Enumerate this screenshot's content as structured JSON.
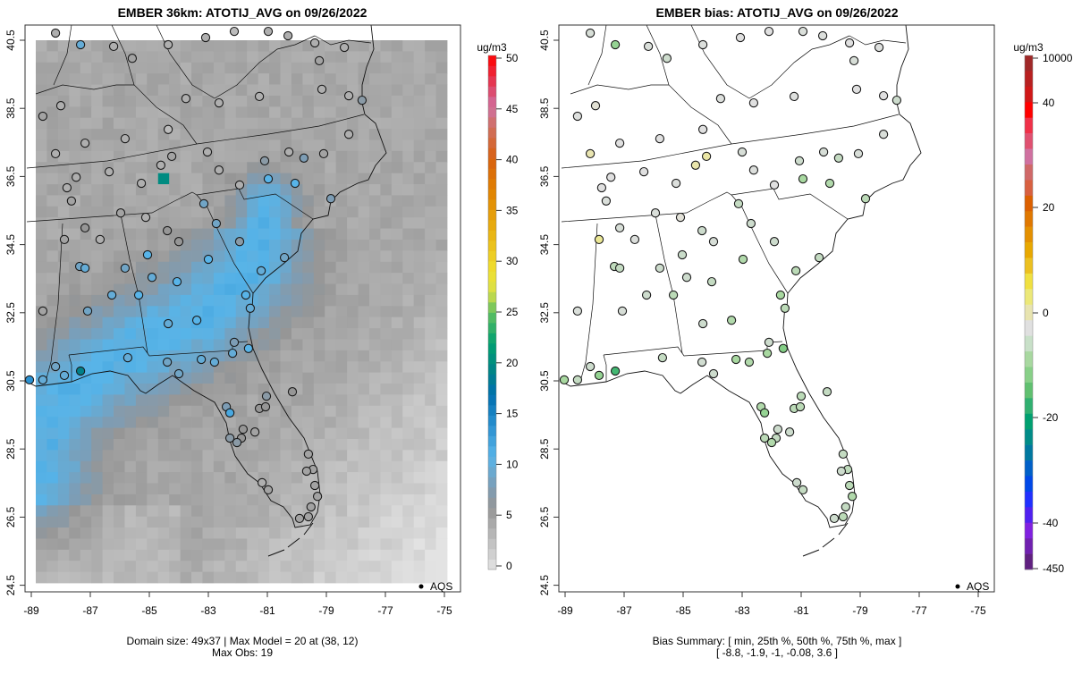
{
  "chart_data": [
    {
      "type": "heatmap",
      "title": "EMBER 36km: ATOTIJ_AVG on 09/26/2022",
      "xticks": [
        "-89",
        "-87",
        "-85",
        "-83",
        "-81",
        "-79",
        "-77",
        "-75"
      ],
      "yticks": [
        "40.5",
        "38.5",
        "36.5",
        "34.5",
        "32.5",
        "30.5",
        "28.5",
        "26.5",
        "24.5"
      ],
      "xlim": [
        -89.2,
        -74.6
      ],
      "ylim": [
        24.3,
        40.95
      ],
      "colorbar": {
        "unit": "ug/m3",
        "range": [
          0,
          50
        ],
        "ticks": [
          "0",
          "5",
          "10",
          "15",
          "20",
          "25",
          "30",
          "35",
          "40",
          "45",
          "50"
        ]
      },
      "legend": {
        "label": "AQS",
        "position": "bottom-right"
      },
      "footer_line1": "Domain size: 49x37 | Max Model = 20 at (38, 12)",
      "footer_line2": "Max Obs: 19"
    },
    {
      "type": "scatter",
      "title": "EMBER bias: ATOTIJ_AVG on 09/26/2022",
      "xticks": [
        "-89",
        "-87",
        "-85",
        "-83",
        "-81",
        "-79",
        "-77",
        "-75"
      ],
      "yticks": [
        "40.5",
        "38.5",
        "36.5",
        "34.5",
        "32.5",
        "30.5",
        "28.5",
        "26.5",
        "24.5"
      ],
      "colorbar": {
        "unit": "ug/m3",
        "ticks": [
          "10000",
          "40",
          "20",
          "0",
          "-20",
          "-40",
          "-450"
        ],
        "colors": [
          "#a02828",
          "#b82020",
          "#d01818",
          "#ff0000",
          "#f03048",
          "#e05070",
          "#d070a0",
          "#d06868",
          "#d86040",
          "#dc6000",
          "#e07800",
          "#e49000",
          "#e8a800",
          "#ecc020",
          "#f0e040",
          "#ece878",
          "#e8e4b0",
          "#e0e0e0",
          "#c8e0c8",
          "#a8d8a0",
          "#88d088",
          "#60c070",
          "#30b070",
          "#00a070",
          "#008c88",
          "#0078a0",
          "#0060c8",
          "#0048e8",
          "#2030ff",
          "#5020f0",
          "#8020e0",
          "#7020b0",
          "#602080"
        ]
      },
      "legend": {
        "label": "AQS",
        "position": "bottom-right"
      },
      "footer_line1": "Bias Summary: [ min, 25th %, 50th %, 75th %, max ]",
      "footer_line2": "[ -8.8,   -1.9,   -1,   -0.08,   3.6 ]"
    }
  ],
  "colors": {
    "left_scale": [
      [
        0,
        "#e3e3e3"
      ],
      [
        3,
        "#bcbcbc"
      ],
      [
        6,
        "#969696"
      ],
      [
        8,
        "#7d9db5"
      ],
      [
        11,
        "#58b4e8"
      ],
      [
        14,
        "#2a90d0"
      ],
      [
        17,
        "#0070b0"
      ],
      [
        19,
        "#00808a"
      ],
      [
        22,
        "#00a070"
      ],
      [
        25,
        "#60c060"
      ],
      [
        27,
        "#d8e048"
      ],
      [
        29,
        "#f0e030"
      ],
      [
        33,
        "#e8b010"
      ],
      [
        37,
        "#e08000"
      ],
      [
        40,
        "#d86010"
      ],
      [
        43,
        "#d07060"
      ],
      [
        45,
        "#d070a0"
      ],
      [
        47,
        "#e04060"
      ],
      [
        50,
        "#ff0000"
      ]
    ]
  },
  "sites_header": [
    "lon",
    "lat",
    "obs",
    "bias"
  ],
  "sites": [
    [
      -88.18,
      40.71,
      4,
      -0.5
    ],
    [
      -87.33,
      40.37,
      10,
      -4
    ],
    [
      -86.21,
      40.32,
      4,
      -0.3
    ],
    [
      -85.58,
      39.97,
      5,
      -1
    ],
    [
      -84.36,
      40.37,
      4,
      -0.2
    ],
    [
      -83.09,
      40.58,
      4,
      0
    ],
    [
      -82.12,
      40.76,
      3,
      0
    ],
    [
      -80.97,
      40.76,
      4,
      -0.3
    ],
    [
      -80.3,
      40.63,
      4,
      -0.2
    ],
    [
      -79.39,
      40.42,
      4,
      0
    ],
    [
      -79.24,
      39.9,
      5,
      -0.5
    ],
    [
      -78.39,
      40.29,
      4,
      -0.1
    ],
    [
      -88.0,
      38.58,
      4,
      0.3
    ],
    [
      -88.61,
      38.27,
      5,
      -0.1
    ],
    [
      -87.18,
      37.48,
      4,
      0
    ],
    [
      -85.82,
      37.61,
      4,
      0
    ],
    [
      -84.36,
      37.88,
      3,
      0
    ],
    [
      -83.76,
      38.79,
      4,
      -0.2
    ],
    [
      -82.64,
      38.66,
      4,
      0
    ],
    [
      -81.27,
      38.85,
      4,
      -0.1
    ],
    [
      -79.15,
      39.06,
      4,
      0
    ],
    [
      -78.24,
      38.87,
      4,
      0
    ],
    [
      -78.24,
      37.74,
      4,
      -0.3
    ],
    [
      -77.79,
      38.74,
      7,
      -1
    ],
    [
      -88.18,
      37.17,
      4,
      1.5
    ],
    [
      -87.48,
      36.48,
      4,
      0
    ],
    [
      -86.36,
      36.64,
      4,
      0
    ],
    [
      -85.27,
      36.3,
      4,
      -0.2
    ],
    [
      -84.61,
      36.83,
      4,
      2
    ],
    [
      -84.24,
      37.09,
      5,
      2.5
    ],
    [
      -83.03,
      37.22,
      4,
      -0.5
    ],
    [
      -82.64,
      36.69,
      4,
      -0.2
    ],
    [
      -81.94,
      36.25,
      4,
      0
    ],
    [
      -81.09,
      36.96,
      7,
      -1
    ],
    [
      -80.97,
      36.43,
      11,
      -3
    ],
    [
      -80.27,
      37.22,
      4,
      -0.5
    ],
    [
      -79.76,
      37.04,
      8,
      -1.5
    ],
    [
      -80.06,
      36.3,
      11,
      -2.5
    ],
    [
      -79.09,
      37.17,
      5,
      -0.4
    ],
    [
      -78.85,
      35.85,
      8,
      -2
    ],
    [
      -87.79,
      36.17,
      4,
      0
    ],
    [
      -87.64,
      35.78,
      5,
      -0.3
    ],
    [
      -87.18,
      34.99,
      6,
      -0.5
    ],
    [
      -87.88,
      34.65,
      5,
      3.6
    ],
    [
      -86.67,
      34.65,
      4,
      -0.2
    ],
    [
      -85.97,
      35.43,
      5,
      -0.3
    ],
    [
      -85.12,
      35.3,
      4,
      0.2
    ],
    [
      -84.39,
      34.91,
      6,
      -1
    ],
    [
      -84.0,
      34.59,
      6,
      -0.5
    ],
    [
      -83.15,
      35.7,
      9,
      -1.5
    ],
    [
      -82.73,
      35.12,
      9,
      -1
    ],
    [
      -83.0,
      34.07,
      11,
      -2.5
    ],
    [
      -81.94,
      34.59,
      7,
      -1
    ],
    [
      -81.21,
      33.73,
      10,
      -2
    ],
    [
      -80.42,
      34.12,
      9,
      -1.5
    ],
    [
      -87.36,
      33.86,
      9,
      -1.8
    ],
    [
      -87.18,
      33.81,
      10,
      -1.5
    ],
    [
      -85.06,
      34.2,
      11,
      -1.2
    ],
    [
      -85.82,
      33.81,
      9,
      -1
    ],
    [
      -84.06,
      33.41,
      11,
      -1.5
    ],
    [
      -84.91,
      33.54,
      10,
      -1
    ],
    [
      -85.36,
      33.02,
      11,
      -2
    ],
    [
      -86.27,
      33.02,
      10,
      -1
    ],
    [
      -88.61,
      32.55,
      5,
      -0.3
    ],
    [
      -87.09,
      32.55,
      9,
      -0.5
    ],
    [
      -84.36,
      32.18,
      10,
      -1
    ],
    [
      -83.39,
      32.28,
      11,
      -2.5
    ],
    [
      -81.73,
      33.02,
      11,
      -3
    ],
    [
      -81.58,
      32.63,
      10,
      -2
    ],
    [
      -82.12,
      31.63,
      8,
      -1
    ],
    [
      -81.64,
      31.45,
      11,
      -5
    ],
    [
      -82.18,
      31.31,
      10,
      -3
    ],
    [
      -87.33,
      30.79,
      19,
      -8.8
    ],
    [
      -88.18,
      30.92,
      9,
      -1
    ],
    [
      -87.88,
      30.66,
      10,
      -4
    ],
    [
      -88.61,
      30.53,
      10,
      -1.5
    ],
    [
      -89.06,
      30.53,
      14,
      -3
    ],
    [
      -85.73,
      31.18,
      10,
      -1.5
    ],
    [
      -84.39,
      31.05,
      9,
      -0.8
    ],
    [
      -82.79,
      31.05,
      10,
      -2.5
    ],
    [
      -83.24,
      31.13,
      10,
      -3
    ],
    [
      -84.0,
      30.71,
      9,
      -1
    ],
    [
      -82.39,
      29.74,
      8,
      -2.5
    ],
    [
      -82.27,
      29.56,
      12,
      -4
    ],
    [
      -81.27,
      29.69,
      6,
      -2
    ],
    [
      -81.82,
      29.08,
      6,
      -1
    ],
    [
      -81.03,
      30.05,
      7,
      -2
    ],
    [
      -80.15,
      30.18,
      6,
      -1.5
    ],
    [
      -81.06,
      29.74,
      6,
      -2
    ],
    [
      -82.27,
      28.82,
      7,
      -2
    ],
    [
      -81.88,
      28.82,
      6,
      -1.5
    ],
    [
      -82.03,
      28.69,
      7,
      -2.5
    ],
    [
      -81.42,
      29.0,
      5,
      -1
    ],
    [
      -81.18,
      27.51,
      4,
      -1
    ],
    [
      -80.97,
      27.3,
      5,
      -1.5
    ],
    [
      -79.61,
      28.35,
      5,
      -1.5
    ],
    [
      -79.45,
      27.9,
      5,
      -1.8
    ],
    [
      -79.67,
      27.85,
      5,
      -1
    ],
    [
      -79.39,
      27.43,
      5,
      -2
    ],
    [
      -79.3,
      27.11,
      5,
      -2.5
    ],
    [
      -79.52,
      26.8,
      5,
      -1.5
    ],
    [
      -79.61,
      26.51,
      5,
      -2
    ],
    [
      -79.91,
      26.46,
      5,
      -1
    ]
  ]
}
